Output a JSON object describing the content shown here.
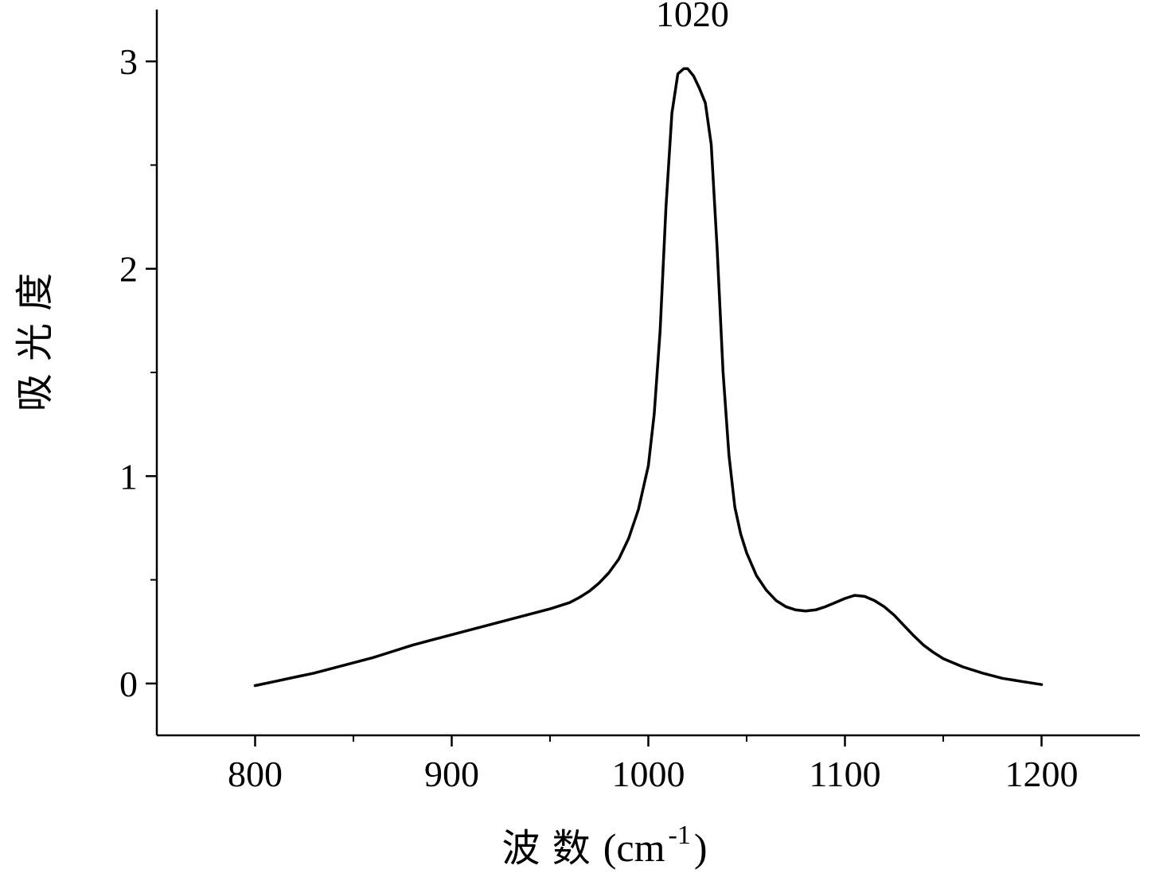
{
  "chart_data": {
    "type": "line",
    "xlabel": "波 数",
    "xlabel_unit_base": "(cm",
    "xlabel_unit_sup": "-1",
    "xlabel_unit_close": ")",
    "ylabel": "吸 光 度",
    "xlim": [
      750,
      1250
    ],
    "ylim": [
      -0.25,
      3.25
    ],
    "x_ticks": [
      800,
      900,
      1000,
      1100,
      1200
    ],
    "x_minor_ticks": [
      850,
      950,
      1050,
      1150
    ],
    "y_ticks": [
      0,
      1,
      2,
      3
    ],
    "y_minor_ticks": [
      0.5,
      1.5,
      2.5
    ],
    "grid": false,
    "legend": "none",
    "annotations": [
      {
        "text": "1020",
        "x": 1020,
        "y": 3.2
      }
    ],
    "series": [
      {
        "color": "#000000",
        "x": [
          800,
          810,
          820,
          830,
          840,
          850,
          860,
          870,
          880,
          890,
          900,
          910,
          920,
          930,
          940,
          950,
          960,
          965,
          970,
          975,
          980,
          985,
          990,
          995,
          1000,
          1003,
          1006,
          1009,
          1012,
          1015,
          1018,
          1020,
          1023,
          1026,
          1029,
          1032,
          1035,
          1038,
          1041,
          1044,
          1047,
          1050,
          1055,
          1060,
          1065,
          1070,
          1075,
          1080,
          1085,
          1090,
          1095,
          1100,
          1105,
          1110,
          1115,
          1120,
          1125,
          1130,
          1135,
          1140,
          1145,
          1150,
          1160,
          1170,
          1180,
          1190,
          1200
        ],
        "y": [
          -0.01,
          0.01,
          0.03,
          0.05,
          0.075,
          0.1,
          0.125,
          0.155,
          0.185,
          0.21,
          0.235,
          0.26,
          0.285,
          0.31,
          0.335,
          0.36,
          0.39,
          0.415,
          0.445,
          0.485,
          0.535,
          0.6,
          0.7,
          0.84,
          1.05,
          1.3,
          1.7,
          2.3,
          2.75,
          2.94,
          2.965,
          2.965,
          2.93,
          2.87,
          2.8,
          2.6,
          2.1,
          1.5,
          1.1,
          0.85,
          0.72,
          0.63,
          0.52,
          0.45,
          0.4,
          0.37,
          0.355,
          0.35,
          0.355,
          0.37,
          0.39,
          0.41,
          0.425,
          0.42,
          0.4,
          0.37,
          0.33,
          0.28,
          0.23,
          0.185,
          0.15,
          0.12,
          0.08,
          0.05,
          0.025,
          0.01,
          -0.005
        ]
      }
    ]
  }
}
